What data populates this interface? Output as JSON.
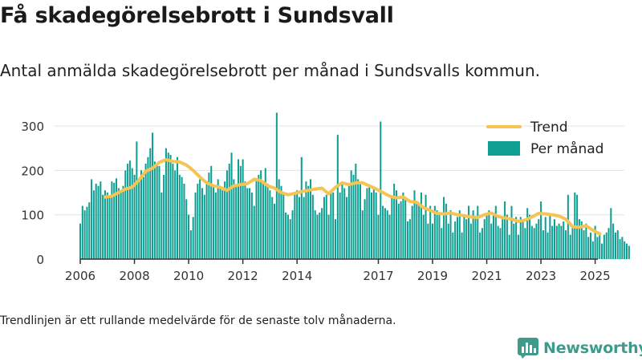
{
  "header": {
    "title": "Få skadegörelsebrott i Sundsvall",
    "subtitle": "Antal anmälda skadegörelsebrott per månad i Sundsvalls kommun."
  },
  "footnote": "Trendlinjen är ett rullande medelvärde för de senaste tolv månaderna.",
  "brand": {
    "name": "Newsworthy",
    "color": "#3d9b8c",
    "icon": "bar-chart-logo-icon"
  },
  "colors": {
    "bar": "#0f9e92",
    "trend": "#f6c453",
    "grid": "#e3e3e3",
    "axis": "#333333"
  },
  "chart_data": {
    "type": "bar",
    "x_tick_labels": [
      "2006",
      "2008",
      "2010",
      "2012",
      "2014",
      "2017",
      "2019",
      "2021",
      "2023",
      "2025"
    ],
    "y_ticks": [
      0,
      100,
      200,
      300
    ],
    "ylim": [
      0,
      320
    ],
    "legend": {
      "placement": "top-right",
      "entries": [
        {
          "label": "Trend",
          "kind": "line"
        },
        {
          "label": "Per månad",
          "kind": "bar"
        }
      ]
    },
    "series": [
      {
        "name": "Per månad",
        "type": "bar",
        "start": "2006-01",
        "values": [
          80,
          120,
          110,
          118,
          128,
          180,
          155,
          170,
          165,
          175,
          145,
          155,
          150,
          140,
          175,
          172,
          182,
          160,
          150,
          165,
          200,
          215,
          222,
          205,
          190,
          265,
          180,
          200,
          185,
          215,
          230,
          250,
          285,
          220,
          215,
          210,
          150,
          190,
          250,
          240,
          235,
          215,
          200,
          230,
          190,
          185,
          170,
          135,
          100,
          65,
          95,
          150,
          170,
          180,
          160,
          145,
          170,
          195,
          210,
          165,
          150,
          180,
          160,
          155,
          175,
          200,
          215,
          240,
          180,
          165,
          225,
          210,
          225,
          175,
          160,
          160,
          150,
          120,
          180,
          190,
          200,
          175,
          205,
          170,
          155,
          140,
          125,
          330,
          180,
          165,
          150,
          105,
          100,
          90,
          110,
          150,
          155,
          140,
          230,
          140,
          175,
          165,
          180,
          145,
          110,
          100,
          105,
          115,
          140,
          145,
          100,
          150,
          150,
          90,
          280,
          150,
          175,
          160,
          140,
          170,
          200,
          190,
          215,
          180,
          175,
          110,
          135,
          160,
          165,
          150,
          160,
          150,
          100,
          310,
          120,
          115,
          110,
          100,
          140,
          170,
          155,
          125,
          130,
          150,
          140,
          85,
          90,
          120,
          155,
          125,
          125,
          150,
          100,
          145,
          80,
          120,
          80,
          120,
          110,
          100,
          70,
          140,
          125,
          80,
          110,
          60,
          85,
          95,
          110,
          60,
          95,
          90,
          120,
          80,
          110,
          95,
          120,
          60,
          70,
          90,
          100,
          110,
          80,
          105,
          120,
          75,
          70,
          90,
          130,
          100,
          55,
          120,
          80,
          95,
          55,
          95,
          90,
          70,
          115,
          100,
          75,
          70,
          80,
          90,
          130,
          65,
          95,
          60,
          100,
          75,
          90,
          75,
          80,
          75,
          85,
          65,
          145,
          55,
          70,
          150,
          145,
          90,
          85,
          65,
          80,
          50,
          60,
          40,
          75,
          50,
          60,
          35,
          55,
          60,
          70,
          115,
          80,
          60,
          65,
          45,
          50,
          40,
          35,
          30
        ]
      },
      {
        "name": "Trend",
        "type": "line",
        "points": [
          [
            "2006-12",
            140
          ],
          [
            "2007-03",
            142
          ],
          [
            "2007-06",
            150
          ],
          [
            "2007-09",
            158
          ],
          [
            "2007-12",
            162
          ],
          [
            "2008-03",
            178
          ],
          [
            "2008-06",
            198
          ],
          [
            "2008-09",
            205
          ],
          [
            "2008-12",
            218
          ],
          [
            "2009-03",
            224
          ],
          [
            "2009-06",
            220
          ],
          [
            "2009-09",
            219
          ],
          [
            "2009-12",
            212
          ],
          [
            "2010-03",
            200
          ],
          [
            "2010-06",
            185
          ],
          [
            "2010-09",
            172
          ],
          [
            "2010-12",
            165
          ],
          [
            "2011-03",
            162
          ],
          [
            "2011-06",
            155
          ],
          [
            "2011-09",
            165
          ],
          [
            "2011-12",
            168
          ],
          [
            "2012-03",
            170
          ],
          [
            "2012-06",
            180
          ],
          [
            "2012-09",
            177
          ],
          [
            "2012-12",
            165
          ],
          [
            "2013-03",
            160
          ],
          [
            "2013-06",
            150
          ],
          [
            "2013-09",
            145
          ],
          [
            "2013-12",
            148
          ],
          [
            "2014-03",
            152
          ],
          [
            "2014-06",
            155
          ],
          [
            "2014-09",
            158
          ],
          [
            "2014-12",
            160
          ],
          [
            "2015-03",
            147
          ],
          [
            "2015-06",
            162
          ],
          [
            "2015-09",
            172
          ],
          [
            "2015-12",
            168
          ],
          [
            "2016-03",
            172
          ],
          [
            "2016-06",
            172
          ],
          [
            "2016-09",
            165
          ],
          [
            "2016-12",
            158
          ],
          [
            "2017-03",
            150
          ],
          [
            "2017-06",
            142
          ],
          [
            "2017-09",
            138
          ],
          [
            "2017-12",
            140
          ],
          [
            "2018-03",
            130
          ],
          [
            "2018-06",
            128
          ],
          [
            "2018-09",
            116
          ],
          [
            "2018-12",
            110
          ],
          [
            "2019-03",
            103
          ],
          [
            "2019-06",
            102
          ],
          [
            "2019-09",
            104
          ],
          [
            "2019-12",
            100
          ],
          [
            "2020-03",
            98
          ],
          [
            "2020-06",
            95
          ],
          [
            "2020-09",
            94
          ],
          [
            "2020-12",
            100
          ],
          [
            "2021-03",
            104
          ],
          [
            "2021-06",
            96
          ],
          [
            "2021-09",
            93
          ],
          [
            "2021-12",
            90
          ],
          [
            "2022-03",
            85
          ],
          [
            "2022-06",
            88
          ],
          [
            "2022-09",
            95
          ],
          [
            "2022-12",
            103
          ],
          [
            "2023-03",
            102
          ],
          [
            "2023-06",
            100
          ],
          [
            "2023-09",
            97
          ],
          [
            "2023-12",
            90
          ],
          [
            "2024-03",
            73
          ],
          [
            "2024-06",
            72
          ],
          [
            "2024-09",
            75
          ],
          [
            "2024-12",
            65
          ],
          [
            "2025-03",
            57
          ]
        ]
      }
    ]
  }
}
